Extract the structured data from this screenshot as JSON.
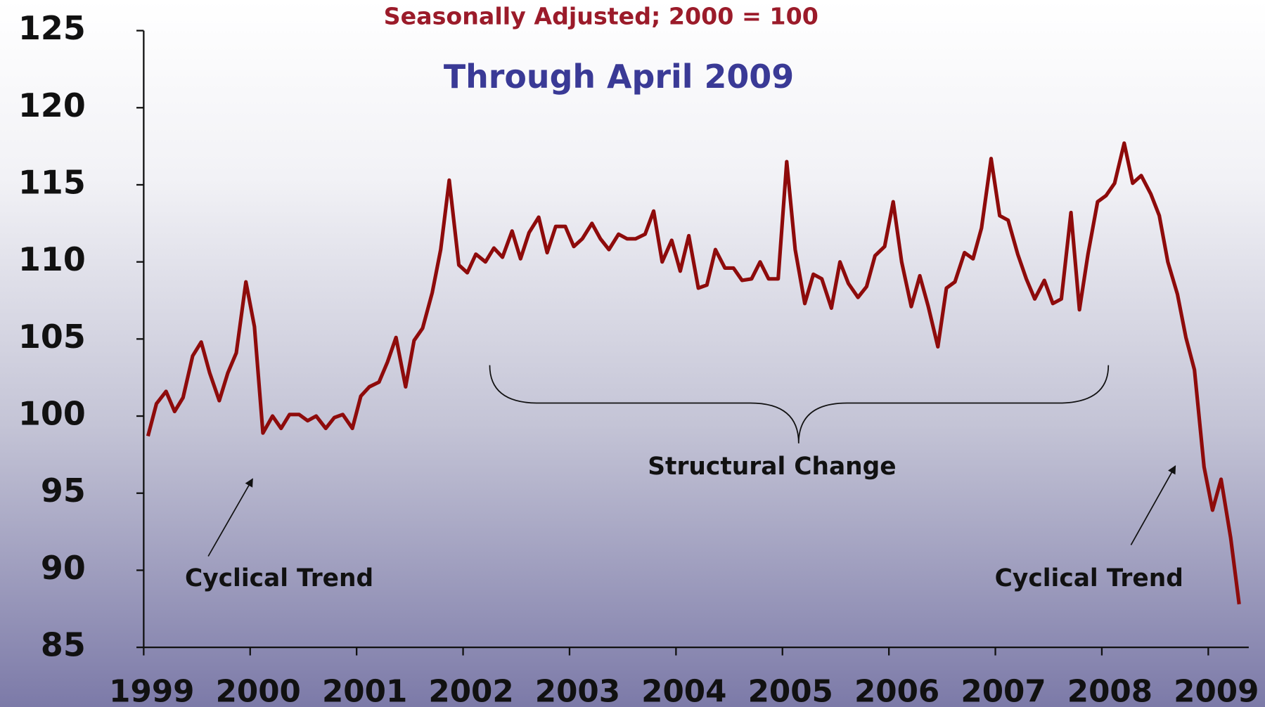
{
  "chart_data": {
    "type": "line",
    "subtitle": "Seasonally Adjusted; 2000 = 100",
    "title": "Through April 2009",
    "annotations": [
      "Cyclical Trend",
      "Structural Change",
      "Cyclical Trend"
    ],
    "color": "#8e0b0b",
    "x": [
      1999.04,
      1999.12,
      1999.21,
      1999.29,
      1999.37,
      1999.46,
      1999.54,
      1999.62,
      1999.71,
      1999.79,
      1999.87,
      1999.96,
      2000.04,
      2000.12,
      2000.21,
      2000.29,
      2000.37,
      2000.46,
      2000.54,
      2000.62,
      2000.71,
      2000.79,
      2000.87,
      2000.96,
      2001.04,
      2001.12,
      2001.21,
      2001.29,
      2001.37,
      2001.46,
      2001.54,
      2001.62,
      2001.71,
      2001.79,
      2001.87,
      2001.96,
      2002.04,
      2002.12,
      2002.21,
      2002.29,
      2002.37,
      2002.46,
      2002.54,
      2002.62,
      2002.71,
      2002.79,
      2002.87,
      2002.96,
      2003.04,
      2003.12,
      2003.21,
      2003.29,
      2003.37,
      2003.46,
      2003.54,
      2003.62,
      2003.71,
      2003.79,
      2003.87,
      2003.96,
      2004.04,
      2004.12,
      2004.21,
      2004.29,
      2004.37,
      2004.46,
      2004.54,
      2004.62,
      2004.71,
      2004.79,
      2004.87,
      2004.96,
      2005.04,
      2005.12,
      2005.21,
      2005.29,
      2005.37,
      2005.46,
      2005.54,
      2005.62,
      2005.71,
      2005.79,
      2005.87,
      2005.96,
      2006.04,
      2006.12,
      2006.21,
      2006.29,
      2006.37,
      2006.46,
      2006.54,
      2006.62,
      2006.71,
      2006.79,
      2006.87,
      2006.96,
      2007.04,
      2007.12,
      2007.21,
      2007.29,
      2007.37,
      2007.46,
      2007.54,
      2007.62,
      2007.71,
      2007.79,
      2007.87,
      2007.96,
      2008.04,
      2008.12,
      2008.21,
      2008.29,
      2008.37,
      2008.46,
      2008.54,
      2008.62,
      2008.71,
      2008.79,
      2008.87,
      2008.96,
      2009.04,
      2009.12,
      2009.21,
      2009.29
    ],
    "values": [
      98.7,
      100.8,
      101.6,
      100.3,
      101.2,
      103.9,
      104.8,
      102.8,
      101.0,
      102.8,
      104.1,
      108.7,
      105.8,
      98.9,
      100.0,
      99.2,
      100.1,
      100.1,
      99.7,
      100.0,
      99.2,
      99.9,
      100.1,
      99.2,
      101.3,
      101.9,
      102.2,
      103.5,
      105.1,
      101.9,
      104.9,
      105.7,
      108.0,
      110.8,
      115.3,
      109.8,
      109.3,
      110.5,
      110.0,
      110.9,
      110.3,
      112.0,
      110.2,
      111.9,
      112.9,
      110.6,
      112.3,
      112.3,
      111.0,
      111.5,
      112.5,
      111.5,
      110.8,
      111.8,
      111.5,
      111.5,
      111.8,
      113.3,
      110.0,
      111.4,
      109.4,
      111.7,
      108.3,
      108.5,
      110.8,
      109.6,
      109.6,
      108.8,
      108.9,
      110.0,
      108.9,
      108.9,
      116.5,
      110.8,
      107.3,
      109.2,
      108.9,
      107.0,
      110.0,
      108.6,
      107.7,
      108.4,
      110.4,
      111.0,
      113.9,
      110.0,
      107.1,
      109.1,
      107.1,
      104.5,
      108.3,
      108.7,
      110.6,
      110.2,
      112.2,
      116.7,
      113.0,
      112.7,
      110.5,
      108.9,
      107.6,
      108.8,
      107.3,
      107.6,
      113.2,
      106.9,
      110.5,
      113.9,
      114.3,
      115.1,
      117.7,
      115.1,
      115.6,
      114.4,
      113.0,
      110.0,
      107.9,
      105.1,
      103.0,
      96.7,
      93.9,
      95.9,
      92.1,
      87.8
    ],
    "xlim": [
      1999,
      2009.38
    ],
    "xticks": [
      1999,
      2000,
      2001,
      2002,
      2003,
      2004,
      2005,
      2006,
      2007,
      2008,
      2009
    ],
    "ylim": [
      85,
      125
    ],
    "yticks": [
      85,
      90,
      95,
      100,
      105,
      110,
      115,
      120,
      125
    ]
  }
}
